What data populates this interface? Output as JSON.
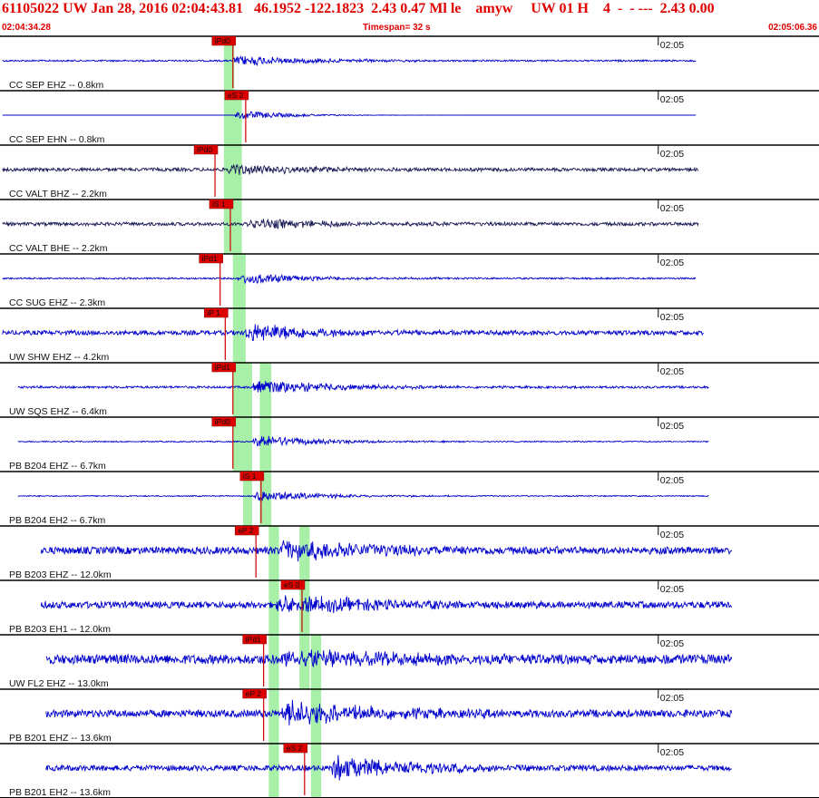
{
  "header": {
    "title": "61105022 UW Jan 28, 2016 02:04:43.81   46.1952 -122.1823  2.43 0.47 Ml le    amyw     UW 01 H    4  -  - ---  2.43 0.00",
    "start_time": "02:04:34.28",
    "timespan": "Timespan=  32 s",
    "end_time": "02:05:06.36"
  },
  "colors": {
    "header_text": "#e00000",
    "trace_blue": "#0000cc",
    "trace_navy": "#1a1a55",
    "pick_window": "#a8f0a8",
    "pick_flag": "#dd0000",
    "pick_line": "#cc0000",
    "separator": "#000000"
  },
  "chart_data": {
    "type": "seismogram",
    "time_axis": {
      "start": "02:04:34.28",
      "end": "02:05:06.36",
      "span_s": 32,
      "tick_label": "02:05"
    },
    "traces": [
      {
        "label": "CC SEP EHZ -- 0.8km",
        "pick": "iPd0",
        "pick_t": 9.1,
        "color": "trace_blue",
        "amp": 0.2,
        "noise": 0.03,
        "start_t": 0.1,
        "end_t": 27.2,
        "onset_t": 9.1,
        "decay": 3.0
      },
      {
        "label": "CC SEP EHN -- 0.8km",
        "pick": "eS 2",
        "pick_t": 9.6,
        "color": "trace_blue",
        "amp": 0.18,
        "noise": 0.0,
        "start_t": 0.1,
        "end_t": 27.2,
        "onset_t": 9.2,
        "decay": 2.0
      },
      {
        "label": "CC VALT BHZ -- 2.2km",
        "pick": "iPd0",
        "pick_t": 8.4,
        "color": "trace_navy",
        "amp": 0.2,
        "noise": 0.06,
        "start_t": 0.1,
        "end_t": 27.3,
        "onset_t": 8.9,
        "decay": 3.5
      },
      {
        "label": "CC VALT BHE -- 2.2km",
        "pick": "iS 1",
        "pick_t": 9.0,
        "color": "trace_navy",
        "amp": 0.2,
        "noise": 0.06,
        "start_t": 0.1,
        "end_t": 27.3,
        "onset_t": 9.6,
        "decay": 3.5
      },
      {
        "label": "CC SUG EHZ -- 2.3km",
        "pick": "iPd1",
        "pick_t": 8.6,
        "color": "trace_blue",
        "amp": 0.22,
        "noise": 0.03,
        "start_t": 0.1,
        "end_t": 27.2,
        "onset_t": 9.3,
        "decay": 2.5
      },
      {
        "label": "UW SHW EHZ -- 4.2km",
        "pick": "iP 1",
        "pick_t": 8.8,
        "color": "trace_blue",
        "amp": 0.35,
        "noise": 0.08,
        "start_t": 0.1,
        "end_t": 27.5,
        "onset_t": 9.6,
        "decay": 3.0
      },
      {
        "label": "UW SQS EHZ -- 6.4km",
        "pick": "iPd1",
        "pick_t": 9.1,
        "color": "trace_blue",
        "amp": 0.3,
        "noise": 0.04,
        "start_t": 0.7,
        "end_t": 27.7,
        "onset_t": 9.9,
        "decay": 3.0
      },
      {
        "label": "PB B204 EHZ -- 6.7km",
        "pick": "iPd0",
        "pick_t": 9.1,
        "color": "trace_blue",
        "amp": 0.25,
        "noise": 0.02,
        "start_t": 0.7,
        "end_t": 27.7,
        "onset_t": 9.9,
        "decay": 2.5
      },
      {
        "label": "PB B204 EH2 -- 6.7km",
        "pick": "iS 1",
        "pick_t": 10.2,
        "color": "trace_blue",
        "amp": 0.22,
        "noise": 0.02,
        "start_t": 0.7,
        "end_t": 27.7,
        "onset_t": 9.9,
        "decay": 2.5
      },
      {
        "label": "PB B203 EHZ -- 12.0km",
        "pick": "eP 2",
        "pick_t": 10.0,
        "color": "trace_blue",
        "amp": 0.4,
        "noise": 0.13,
        "start_t": 1.6,
        "end_t": 28.6,
        "onset_t": 10.8,
        "decay": 4.0
      },
      {
        "label": "PB B203 EH1 -- 12.0km",
        "pick": "eS 0",
        "pick_t": 11.8,
        "color": "trace_blue",
        "amp": 0.35,
        "noise": 0.12,
        "start_t": 1.6,
        "end_t": 28.6,
        "onset_t": 10.8,
        "decay": 4.0
      },
      {
        "label": "UW FL2 EHZ -- 13.0km",
        "pick": "iPd1",
        "pick_t": 10.3,
        "color": "trace_blue",
        "amp": 0.4,
        "noise": 0.17,
        "start_t": 1.8,
        "end_t": 28.6,
        "onset_t": 11.0,
        "decay": 4.0
      },
      {
        "label": "PB B201 EHZ -- 13.6km",
        "pick": "eP 2",
        "pick_t": 10.3,
        "color": "trace_blue",
        "amp": 0.45,
        "noise": 0.13,
        "start_t": 1.8,
        "end_t": 28.6,
        "onset_t": 11.0,
        "decay": 4.0
      },
      {
        "label": "PB B201 EH2 -- 13.6km",
        "pick": "eS 2",
        "pick_t": 11.9,
        "color": "trace_blue",
        "amp": 0.45,
        "noise": 0.1,
        "start_t": 1.8,
        "end_t": 28.6,
        "onset_t": 12.9,
        "decay": 3.5
      }
    ],
    "pick_windows": [
      {
        "t0": 8.75,
        "t1": 9.15,
        "rows": [
          0,
          1
        ]
      },
      {
        "t0": 8.75,
        "t1": 9.45,
        "rows": [
          1,
          4
        ]
      },
      {
        "t0": 9.1,
        "t1": 9.6,
        "rows": [
          4,
          8
        ]
      },
      {
        "t0": 9.5,
        "t1": 9.85,
        "rows": [
          6,
          9
        ]
      },
      {
        "t0": 10.15,
        "t1": 10.6,
        "rows": [
          6,
          9
        ]
      },
      {
        "t0": 10.5,
        "t1": 10.9,
        "rows": [
          9,
          14
        ]
      },
      {
        "t0": 11.7,
        "t1": 12.1,
        "rows": [
          9,
          12
        ]
      },
      {
        "t0": 12.15,
        "t1": 12.55,
        "rows": [
          11,
          14
        ]
      }
    ]
  }
}
